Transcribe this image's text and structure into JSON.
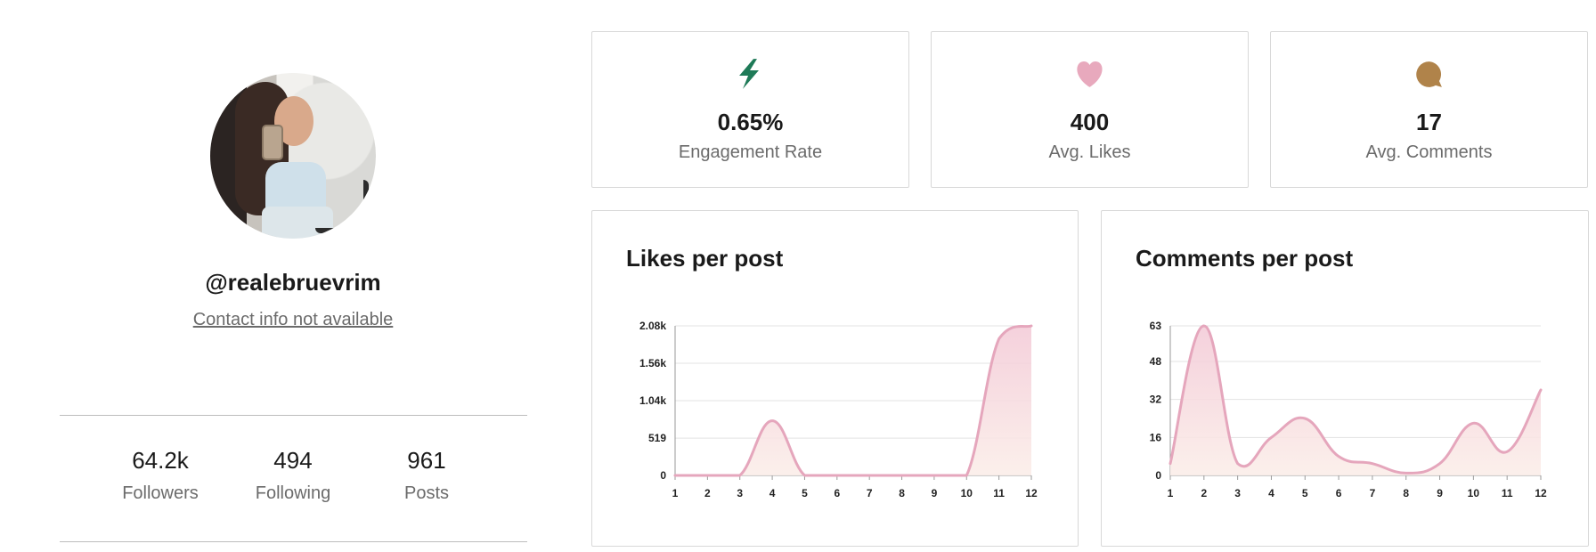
{
  "profile": {
    "handle": "@realebruevrim",
    "contact": "Contact info not available",
    "stats": [
      {
        "value": "64.2k",
        "label": "Followers"
      },
      {
        "value": "494",
        "label": "Following"
      },
      {
        "value": "961",
        "label": "Posts"
      }
    ]
  },
  "metrics": [
    {
      "value": "0.65%",
      "label": "Engagement Rate",
      "icon": "lightning-bolt-icon",
      "color": "#1e7a57"
    },
    {
      "value": "400",
      "label": "Avg. Likes",
      "icon": "heart-icon",
      "color": "#e8a9bd"
    },
    {
      "value": "17",
      "label": "Avg. Comments",
      "icon": "speech-bubble-icon",
      "color": "#b0834a"
    }
  ],
  "chart_data": [
    {
      "type": "area",
      "title": "Likes per post",
      "x": [
        1,
        2,
        3,
        4,
        5,
        6,
        7,
        8,
        9,
        10,
        11,
        12
      ],
      "series": [
        {
          "values": [
            0,
            0,
            0,
            760,
            0,
            0,
            0,
            0,
            0,
            0,
            1900,
            2080
          ]
        }
      ],
      "yticks": [
        "0",
        "519",
        "1.04k",
        "1.56k",
        "2.08k"
      ],
      "ytick_values": [
        0,
        519,
        1040,
        1560,
        2080
      ],
      "ylim": [
        0,
        2080
      ],
      "grid": true,
      "colors": {
        "line": "#e5a6bc",
        "fill_top": "#f3c9d6",
        "fill_bottom": "#fbeee9"
      }
    },
    {
      "type": "area",
      "title": "Comments per post",
      "x": [
        1,
        2,
        3,
        4,
        5,
        6,
        7,
        8,
        9,
        10,
        11,
        12
      ],
      "series": [
        {
          "values": [
            5,
            63,
            5,
            16,
            24,
            8,
            5,
            1,
            5,
            22,
            10,
            36
          ]
        }
      ],
      "yticks": [
        "0",
        "16",
        "32",
        "48",
        "63"
      ],
      "ytick_values": [
        0,
        16,
        32,
        48,
        63
      ],
      "ylim": [
        0,
        63
      ],
      "grid": true,
      "colors": {
        "line": "#e5a6bc",
        "fill_top": "#f3c9d6",
        "fill_bottom": "#fbeee9"
      }
    }
  ]
}
